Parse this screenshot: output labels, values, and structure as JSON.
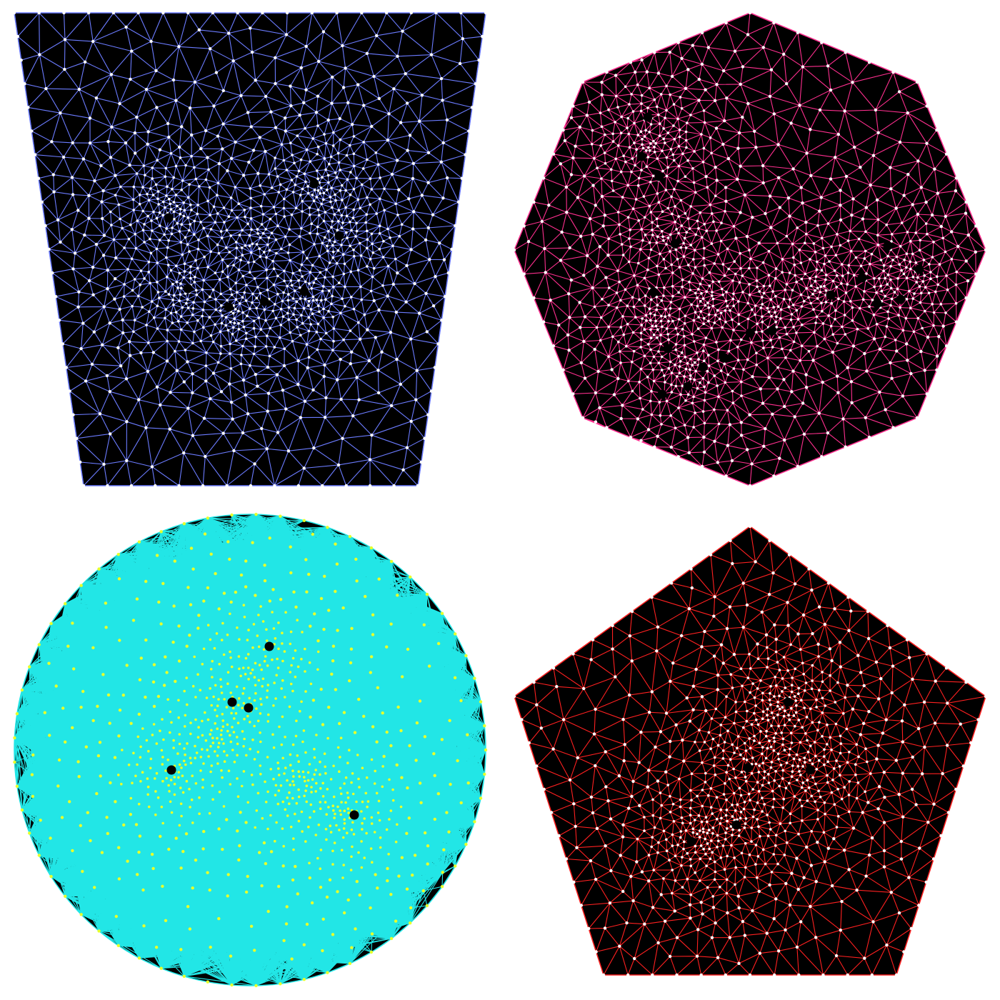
{
  "panels": [
    {
      "id": "trapezoid",
      "shape": "trapezoid",
      "edge_color": "#6b7bff",
      "node_color": "#ffffff",
      "dense_color": "#ffffff",
      "seed_color": "#000000",
      "seed_count": 7
    },
    {
      "id": "octagon",
      "shape": "octagon",
      "edge_color": "#ff2f8f",
      "node_color": "#ffffff",
      "dense_color": "#ffffff",
      "seed_color": "#000000",
      "seed_count": 17
    },
    {
      "id": "circle",
      "shape": "circle",
      "edge_color": "#22e6e6",
      "node_color": "#e8ff2a",
      "dense_color": "#e8ff2a",
      "seed_color": "#000000",
      "seed_count": 5
    },
    {
      "id": "pentagon",
      "shape": "pentagon",
      "edge_color": "#ff2020",
      "node_color": "#ffffff",
      "dense_color": "#ffffff",
      "seed_color": "#000000",
      "seed_count": 5
    }
  ]
}
